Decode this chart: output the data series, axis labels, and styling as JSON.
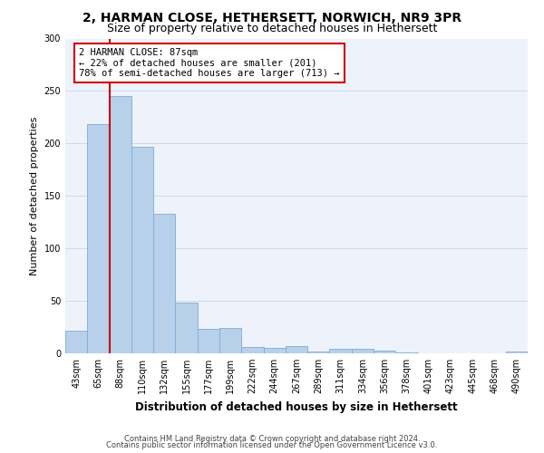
{
  "title1": "2, HARMAN CLOSE, HETHERSETT, NORWICH, NR9 3PR",
  "title2": "Size of property relative to detached houses in Hethersett",
  "xlabel": "Distribution of detached houses by size in Hethersett",
  "ylabel": "Number of detached properties",
  "categories": [
    "43sqm",
    "65sqm",
    "88sqm",
    "110sqm",
    "132sqm",
    "155sqm",
    "177sqm",
    "199sqm",
    "222sqm",
    "244sqm",
    "267sqm",
    "289sqm",
    "311sqm",
    "334sqm",
    "356sqm",
    "378sqm",
    "401sqm",
    "423sqm",
    "445sqm",
    "468sqm",
    "490sqm"
  ],
  "values": [
    22,
    218,
    245,
    197,
    133,
    48,
    23,
    24,
    6,
    5,
    7,
    2,
    4,
    4,
    3,
    1,
    0,
    0,
    0,
    0,
    2
  ],
  "bar_color": "#b8d0ea",
  "bar_edgecolor": "#7aadd4",
  "grid_color": "#d0d8e8",
  "bg_color": "#eef2fa",
  "annotation_text": "2 HARMAN CLOSE: 87sqm\n← 22% of detached houses are smaller (201)\n78% of semi-detached houses are larger (713) →",
  "annotation_box_facecolor": "#ffffff",
  "annotation_box_edgecolor": "#cc0000",
  "marker_line_color": "#cc0000",
  "ylim": [
    0,
    300
  ],
  "yticks": [
    0,
    50,
    100,
    150,
    200,
    250,
    300
  ],
  "footer1": "Contains HM Land Registry data © Crown copyright and database right 2024.",
  "footer2": "Contains public sector information licensed under the Open Government Licence v3.0.",
  "title1_fontsize": 10,
  "title2_fontsize": 9,
  "annotation_fontsize": 7.5,
  "tick_fontsize": 7,
  "ylabel_fontsize": 8,
  "xlabel_fontsize": 8.5,
  "footer_fontsize": 6
}
